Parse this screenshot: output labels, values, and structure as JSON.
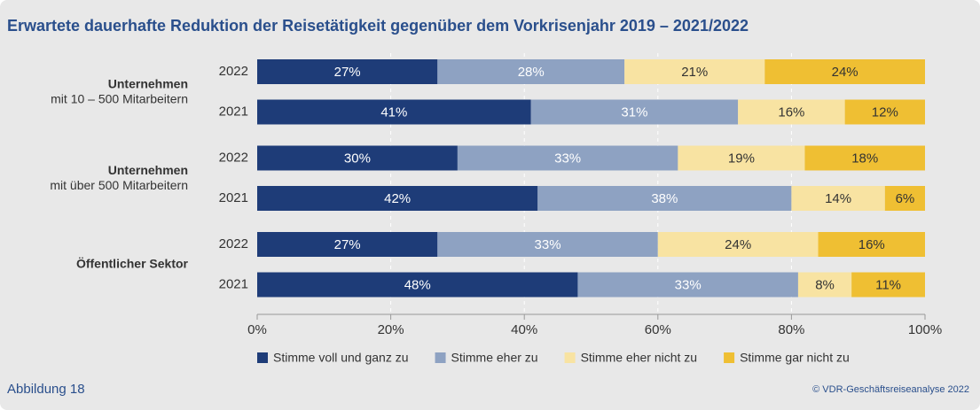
{
  "chart_data": {
    "type": "stacked-bar-horizontal",
    "title": "Erwartete dauerhafte Reduktion der Reisetätigkeit gegenüber dem Vorkrisenjahr 2019 – 2021/2022",
    "groups": [
      {
        "name": "Unternehmen",
        "note": "mit 10 – 500 Mitarbeitern"
      },
      {
        "name": "Unternehmen",
        "note": "mit über  500 Mitarbeitern"
      },
      {
        "name": "Öffentlicher Sektor"
      }
    ],
    "categories": [
      "2022",
      "2021",
      "2022",
      "2021",
      "2022",
      "2021"
    ],
    "series": [
      {
        "name": "Stimme voll und ganz zu",
        "color": "#1e3c78",
        "label_color": "#ffffff",
        "values": [
          27,
          41,
          30,
          42,
          27,
          48
        ],
        "value_labels": [
          "27%",
          "41%",
          "30%",
          "42%",
          "27%",
          "48%"
        ]
      },
      {
        "name": "Stimme eher zu",
        "color": "#8ea2c2",
        "label_color": "#ffffff",
        "values": [
          28,
          31,
          33,
          38,
          33,
          33
        ],
        "value_labels": [
          "28%",
          "31%",
          "33%",
          "38%",
          "33%",
          "33%"
        ]
      },
      {
        "name": "Stimme eher nicht zu",
        "color": "#f8e3a2",
        "label_color": "#333333",
        "values": [
          21,
          16,
          19,
          14,
          24,
          8
        ],
        "value_labels": [
          "21%",
          "16%",
          "19%",
          "14%",
          "24%",
          "8%"
        ]
      },
      {
        "name": "Stimme gar nicht zu",
        "color": "#efbf33",
        "label_color": "#333333",
        "values": [
          24,
          12,
          18,
          6,
          16,
          11
        ],
        "value_labels": [
          "24%",
          "12%",
          "18%",
          "6%",
          "16%",
          "11%"
        ]
      }
    ],
    "xlim": [
      0,
      100
    ],
    "xticks": [
      {
        "value": 0,
        "label": "0%"
      },
      {
        "value": 20,
        "label": "20%"
      },
      {
        "value": 40,
        "label": "40%"
      },
      {
        "value": 60,
        "label": "60%"
      },
      {
        "value": 80,
        "label": "80%"
      },
      {
        "value": 100,
        "label": "100%"
      }
    ],
    "grid": true,
    "figure_label": "Abbildung 18",
    "source": "© VDR-Geschäftsreiseanalyse 2022"
  }
}
